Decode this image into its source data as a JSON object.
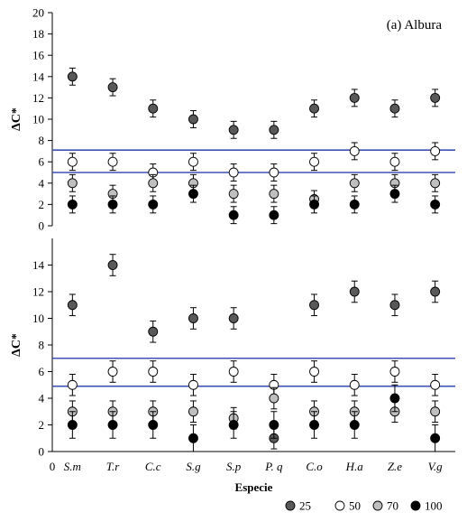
{
  "chart_data": [
    {
      "type": "scatter",
      "annotation": "(a) Albura",
      "ylabel": "ΔC*",
      "ylim": [
        0,
        20
      ],
      "yticks": [
        0,
        2,
        4,
        6,
        8,
        10,
        12,
        14,
        16,
        18,
        20
      ],
      "categories": [
        "S.m",
        "T.r",
        "C.c",
        "S.g",
        "S.p",
        "P. q",
        "C.o",
        "H.a",
        "Z.e",
        "V.g"
      ],
      "series": [
        {
          "name": "25",
          "color": "#595959",
          "values": [
            14,
            13,
            11,
            10,
            9,
            9,
            11,
            12,
            11,
            12
          ],
          "error": [
            0.8,
            0.8,
            0.8,
            0.8,
            0.8,
            0.8,
            0.8,
            0.8,
            0.8,
            0.8
          ]
        },
        {
          "name": "50",
          "color": "#ffffff",
          "values": [
            6,
            6,
            5,
            6,
            5,
            5,
            6,
            7,
            6,
            7
          ],
          "error": [
            0.8,
            0.8,
            0.8,
            0.8,
            0.8,
            0.8,
            0.8,
            0.8,
            0.8,
            0.8
          ]
        },
        {
          "name": "70",
          "color": "#bfbfbf",
          "values": [
            4,
            3,
            4,
            4,
            3,
            3,
            2.5,
            4,
            4,
            4
          ],
          "error": [
            0.8,
            0.8,
            0.8,
            0.8,
            0.8,
            0.8,
            0.8,
            0.8,
            0.8,
            0.8
          ]
        },
        {
          "name": "100",
          "color": "#000000",
          "values": [
            2,
            2,
            2,
            3,
            1,
            1,
            2,
            2,
            3,
            2
          ],
          "error": [
            0.8,
            0.8,
            0.8,
            0.8,
            0.8,
            0.8,
            0.8,
            0.8,
            0.8,
            0.8
          ]
        }
      ],
      "reference_lines": [
        7.1,
        5.0
      ],
      "reference_color": "#3f51b5"
    },
    {
      "type": "scatter",
      "ylabel": "ΔC*",
      "xlabel": "Especie",
      "ylim": [
        0,
        16
      ],
      "yticks": [
        0,
        2,
        4,
        6,
        8,
        10,
        12,
        14
      ],
      "origin_label": "0",
      "categories": [
        "S.m",
        "T.r",
        "C.c",
        "S.g",
        "S.p",
        "P. q",
        "C.o",
        "H.a",
        "Z.e",
        "V.g"
      ],
      "series": [
        {
          "name": "25",
          "color": "#595959",
          "values": [
            11,
            14,
            9,
            10,
            10,
            1,
            11,
            12,
            11,
            12
          ],
          "error": [
            0.8,
            0.8,
            0.8,
            0.8,
            0.8,
            0.8,
            0.8,
            0.8,
            0.8,
            0.8
          ]
        },
        {
          "name": "50",
          "color": "#ffffff",
          "values": [
            5,
            6,
            6,
            5,
            6,
            5,
            6,
            5,
            6,
            5
          ],
          "error": [
            0.8,
            0.8,
            0.8,
            0.8,
            0.8,
            0.8,
            0.8,
            0.8,
            0.8,
            0.8
          ]
        },
        {
          "name": "70",
          "color": "#bfbfbf",
          "values": [
            3,
            3,
            3,
            3,
            2.5,
            4,
            3,
            3,
            3,
            3
          ],
          "error": [
            0.8,
            0.8,
            0.8,
            0.8,
            0.8,
            0.8,
            0.8,
            0.8,
            0.8,
            0.8
          ]
        },
        {
          "name": "100",
          "color": "#000000",
          "values": [
            2,
            2,
            2,
            1,
            2,
            2,
            2,
            2,
            4,
            1
          ],
          "error": [
            1.0,
            1.0,
            1.0,
            1.0,
            1.0,
            1.0,
            1.0,
            1.0,
            1.0,
            1.0
          ]
        }
      ],
      "reference_lines": [
        7.0,
        4.9
      ],
      "reference_color": "#3f51b5"
    }
  ],
  "legend": {
    "placement": "bottom-center",
    "items": [
      {
        "label": "25",
        "color": "#595959"
      },
      {
        "label": "50",
        "color": "#ffffff"
      },
      {
        "label": "70",
        "color": "#bfbfbf"
      },
      {
        "label": "100",
        "color": "#000000"
      }
    ]
  }
}
